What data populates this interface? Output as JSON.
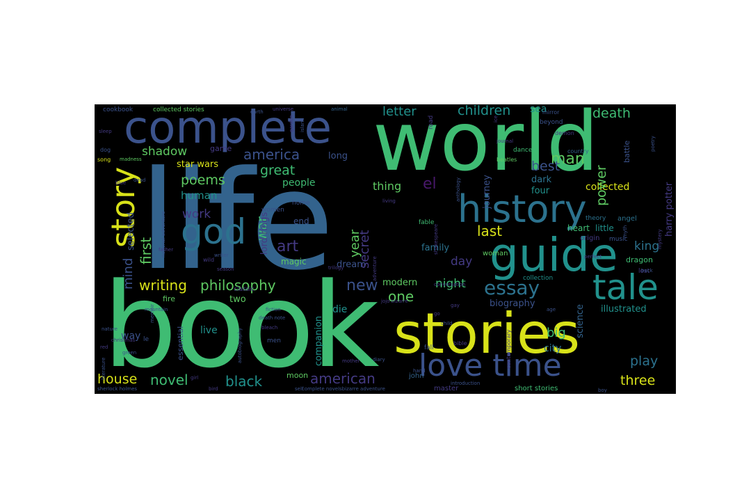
{
  "word_cloud": {
    "background": "#000000",
    "words": {
      "life": "life",
      "book": "book",
      "world": "world",
      "stories": "stories",
      "complete": "complete",
      "history": "history",
      "guide": "guide",
      "tale": "tale",
      "love_time": "love time",
      "god": "god",
      "story": "story",
      "essay": "essay",
      "philosophy": "philosophy",
      "writing": "writing",
      "poems": "poems",
      "america": "america",
      "american": "american",
      "art": "art",
      "man": "man",
      "great": "great",
      "children": "children",
      "letter": "letter",
      "death": "death",
      "novel": "novel",
      "black": "black",
      "house": "house",
      "new": "new",
      "one": "one",
      "last": "last",
      "best": "best",
      "play": "play",
      "three": "three",
      "king": "king",
      "night": "night",
      "day": "day",
      "shadow": "shadow",
      "star_wars": "star wars",
      "work": "work",
      "human": "human",
      "first": "first",
      "mind": "mind",
      "selected": "selected",
      "war": "war",
      "lord_rings": "lord rings",
      "year": "year",
      "secret": "secret",
      "thing": "thing",
      "el": "el",
      "power": "power",
      "harry_potter": "harry potter",
      "collected": "collected",
      "biography": "biography",
      "illustrated": "illustrated",
      "science": "science",
      "big": "big",
      "city": "city",
      "modern": "modern",
      "dream": "dream",
      "family": "family",
      "magic": "magic",
      "end": "end",
      "people": "people",
      "long": "long",
      "game": "game",
      "sea": "sea",
      "journey": "journey",
      "dark": "dark",
      "four": "four",
      "heart": "heart",
      "little": "little",
      "angel": "angel",
      "music": "music",
      "dragon": "dragon",
      "origin": "origin",
      "woman": "woman",
      "moon": "moon",
      "die": "die",
      "companion": "companion",
      "live": "live",
      "two": "two",
      "fire": "fire",
      "way": "way",
      "essential": "essential",
      "short_stories": "short stories",
      "master": "master",
      "john": "john",
      "collected_stories": "collected stories",
      "cookbook": "cookbook",
      "beyond": "beyond",
      "dance": "dance",
      "battle": "battle",
      "theory": "theory",
      "lost": "lost",
      "collection": "collection",
      "classic": "classic",
      "home": "home",
      "women": "women",
      "fable": "fable",
      "men": "men",
      "fall": "fall",
      "bible": "bible",
      "journal": "journal",
      "road": "road",
      "universe": "universe",
      "earth": "earth",
      "animal": "animal",
      "demon": "demon",
      "mirror": "mirror",
      "beatles": "beatles",
      "country": "country",
      "age": "age",
      "myth": "myth",
      "poetry": "poetry",
      "mystery": "mystery",
      "jojo_bizarre": "jojo bizarre",
      "complete_novel_adventure": "complete novelsbizarre adventure",
      "sherlock_holmes": "sherlock holmes",
      "bird": "bird",
      "self": "self",
      "introduction": "introduction",
      "boy": "boy",
      "le": "le",
      "green": "green",
      "girl": "girl",
      "living": "living",
      "diary": "diary",
      "hand": "hand",
      "mother": "mother",
      "father": "father",
      "red": "red",
      "christmas": "christmas",
      "nature": "nature",
      "sleep": "sleep",
      "dog": "dog",
      "blue": "blue",
      "dead": "dead",
      "wild": "wild",
      "season": "season",
      "writer": "writer",
      "faith": "faith",
      "song": "song",
      "madness": "madness",
      "shakespeare": "shakespeare",
      "anthology": "anthology",
      "adventure": "adventure",
      "conversation": "conversation",
      "gay": "gay",
      "go": "go",
      "child": "child",
      "contemporary": "contemporary",
      "autobiography": "autobiography",
      "death_note": "death note",
      "bleach": "bleach",
      "fiction": "fiction",
      "trilogy": "trilogy",
      "mountain": "mountain",
      "memoir": "memoir",
      "literature": "literature",
      "national_adventure": "national adventure",
      "perfect": "perfect",
      "back": "back",
      "ice": "ice",
      "garden": "garden",
      "island": "island"
    },
    "palette": {
      "purple": "#48186a",
      "indigo": "#443a83",
      "blue": "#3b528b",
      "steel": "#33638d",
      "teal_dark": "#2c728e",
      "teal": "#21918c",
      "sea": "#28ae80",
      "green": "#3fbc73",
      "lime": "#5ec962",
      "yellow_green": "#addc30",
      "yellow": "#d8e219"
    }
  }
}
